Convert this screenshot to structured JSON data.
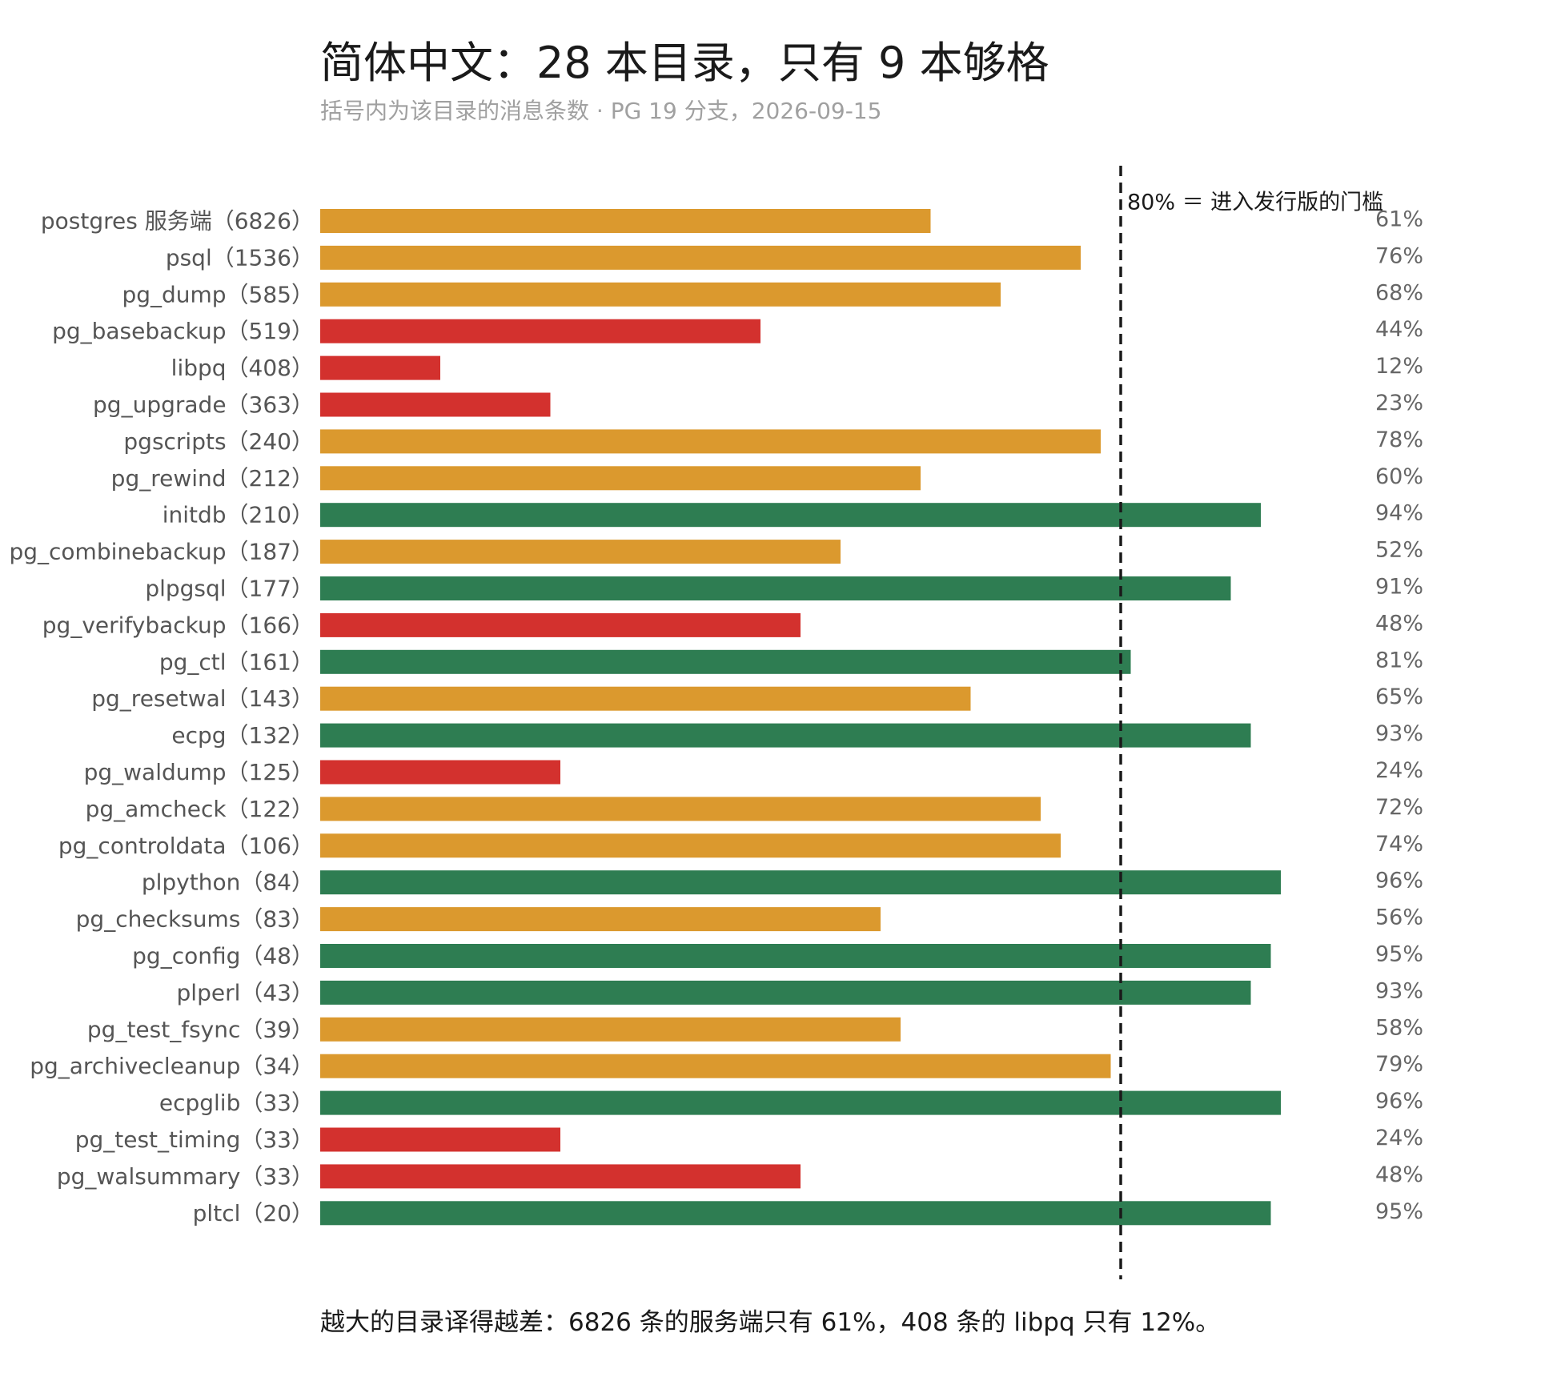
{
  "title": "简体中文：28 本目录，只有 9 本够格",
  "subtitle": "括号内为该目录的消息条数 · PG 19 分支，2026-09-15",
  "footnote": "越大的目录译得越差：6826 条的服务端只有 61%，408 条的 libpq 只有 12%。",
  "colors": {
    "pass": "#2e7d52",
    "mid": "#db992e",
    "low": "#d3312e",
    "threshold": "#1a1a1a"
  },
  "chart_data": {
    "type": "bar",
    "orientation": "horizontal",
    "xlim": [
      0,
      100
    ],
    "threshold": {
      "value": 80,
      "label": "80% ＝ 进入发行版的门槛"
    },
    "categories": [
      "postgres 服务端（6826）",
      "psql（1536）",
      "pg_dump（585）",
      "pg_basebackup（519）",
      "libpq（408）",
      "pg_upgrade（363）",
      "pgscripts（240）",
      "pg_rewind（212）",
      "initdb（210）",
      "pg_combinebackup（187）",
      "plpgsql（177）",
      "pg_verifybackup（166）",
      "pg_ctl（161）",
      "pg_resetwal（143）",
      "ecpg（132）",
      "pg_waldump（125）",
      "pg_amcheck（122）",
      "pg_controldata（106）",
      "plpython（84）",
      "pg_checksums（83）",
      "pg_config（48）",
      "plperl（43）",
      "pg_test_fsync（39）",
      "pg_archivecleanup（34）",
      "ecpglib（33）",
      "pg_test_timing（33）",
      "pg_walsummary（33）",
      "pltcl（20）"
    ],
    "values": [
      61,
      76,
      68,
      44,
      12,
      23,
      78,
      60,
      94,
      52,
      91,
      48,
      81,
      65,
      93,
      24,
      72,
      74,
      96,
      56,
      95,
      93,
      58,
      79,
      96,
      24,
      48,
      95
    ],
    "value_labels": [
      "61%",
      "76%",
      "68%",
      "44%",
      "12%",
      "23%",
      "78%",
      "60%",
      "94%",
      "52%",
      "91%",
      "48%",
      "81%",
      "65%",
      "93%",
      "24%",
      "72%",
      "74%",
      "96%",
      "56%",
      "95%",
      "93%",
      "58%",
      "79%",
      "96%",
      "24%",
      "48%",
      "95%"
    ],
    "status": [
      "mid",
      "mid",
      "mid",
      "low",
      "low",
      "low",
      "mid",
      "mid",
      "pass",
      "mid",
      "pass",
      "low",
      "pass",
      "mid",
      "pass",
      "low",
      "mid",
      "mid",
      "pass",
      "mid",
      "pass",
      "pass",
      "mid",
      "mid",
      "pass",
      "low",
      "low",
      "pass"
    ],
    "grid": false,
    "legend": "none"
  }
}
